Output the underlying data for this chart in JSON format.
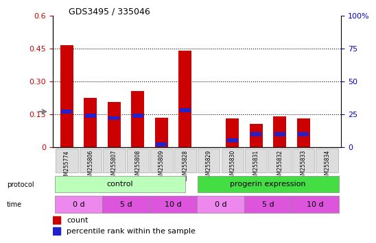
{
  "title": "GDS3495 / 335046",
  "samples": [
    "GSM255774",
    "GSM255806",
    "GSM255807",
    "GSM255808",
    "GSM255809",
    "GSM255828",
    "GSM255829",
    "GSM255830",
    "GSM255831",
    "GSM255832",
    "GSM255833",
    "GSM255834"
  ],
  "count_values": [
    0.465,
    0.225,
    0.205,
    0.255,
    0.135,
    0.44,
    0.0,
    0.13,
    0.105,
    0.14,
    0.13,
    0.0
  ],
  "pct_values_raw": [
    27,
    24,
    22,
    24,
    2,
    28,
    0,
    5,
    10,
    10,
    10,
    0
  ],
  "ylim_left": [
    0,
    0.6
  ],
  "ylim_right": [
    0,
    100
  ],
  "yticks_left": [
    0,
    0.15,
    0.3,
    0.45,
    0.6
  ],
  "yticks_right": [
    0,
    25,
    50,
    75,
    100
  ],
  "ytick_labels_left": [
    "0",
    "0.15",
    "0.30",
    "0.45",
    "0.6"
  ],
  "ytick_labels_right": [
    "0",
    "25",
    "50",
    "75",
    "100%"
  ],
  "bar_color": "#cc0000",
  "pct_color": "#2222cc",
  "bar_width": 0.55,
  "protocol_labels": [
    "control",
    "progerin expression"
  ],
  "protocol_color_light": "#bbffbb",
  "protocol_color_dark": "#44dd44",
  "time_color_light": "#ee88ee",
  "time_color_white": "#ee88ee",
  "bg_color": "#ffffff",
  "label_bg": "#dddddd"
}
